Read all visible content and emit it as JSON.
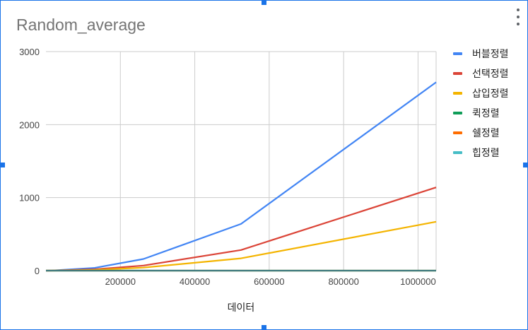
{
  "title": "Random_average",
  "chart_data": {
    "type": "line",
    "title": "Random_average",
    "xlabel": "데이터",
    "ylabel": "",
    "x": [
      1,
      16384,
      131072,
      262144,
      524288,
      1048576
    ],
    "xlim": [
      0,
      1048576
    ],
    "ylim": [
      0,
      3000
    ],
    "xticks": [
      200000,
      400000,
      600000,
      800000,
      1000000
    ],
    "xtick_labels": [
      "200000",
      "400000",
      "600000",
      "800000",
      "1000000"
    ],
    "yticks": [
      0,
      1000,
      2000,
      3000
    ],
    "ytick_labels": [
      "0",
      "1000",
      "2000",
      "3000"
    ],
    "grid": true,
    "legend_position": "right",
    "series": [
      {
        "name": "버블정렬",
        "color": "#4285f4",
        "values": [
          0,
          1,
          38,
          160,
          640,
          2580
        ]
      },
      {
        "name": "선택정렬",
        "color": "#db4437",
        "values": [
          0,
          1,
          18,
          70,
          283,
          1140
        ]
      },
      {
        "name": "삽입정렬",
        "color": "#f4b400",
        "values": [
          0,
          0,
          10,
          42,
          168,
          670
        ]
      },
      {
        "name": "퀵정렬",
        "color": "#0f9d58",
        "values": [
          0,
          0,
          0,
          0,
          0,
          0.2
        ]
      },
      {
        "name": "쉘정렬",
        "color": "#ff6d00",
        "values": [
          0,
          0,
          0,
          0,
          0,
          0.3
        ]
      },
      {
        "name": "힙정렬",
        "color": "#46bdc6",
        "values": [
          0,
          0,
          0,
          0,
          0,
          0.3
        ]
      }
    ]
  }
}
